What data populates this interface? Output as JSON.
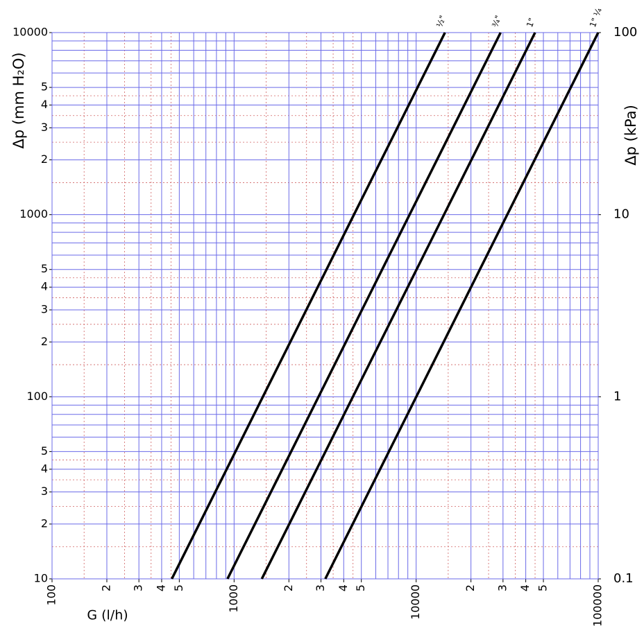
{
  "chart_data": {
    "type": "line",
    "log_x": true,
    "log_y": true,
    "xlabel": "G (l/h)",
    "ylabel": "Δp (mm H₂O)",
    "y2label": "Δp (kPa)",
    "xlim": [
      100,
      100000
    ],
    "ylim": [
      10,
      10000
    ],
    "y2lim": [
      0.1,
      100
    ],
    "xticks": [
      100,
      {
        "value": 200,
        "label": "2"
      },
      {
        "value": 300,
        "label": "3"
      },
      {
        "value": 400,
        "label": "4"
      },
      {
        "value": 500,
        "label": "5"
      },
      1000,
      {
        "value": 2000,
        "label": "2"
      },
      {
        "value": 3000,
        "label": "3"
      },
      {
        "value": 4000,
        "label": "4"
      },
      {
        "value": 5000,
        "label": "5"
      },
      10000,
      {
        "value": 20000,
        "label": "2"
      },
      {
        "value": 30000,
        "label": "3"
      },
      {
        "value": 40000,
        "label": "4"
      },
      {
        "value": 50000,
        "label": "5"
      },
      100000
    ],
    "yticks": [
      10,
      {
        "value": 20,
        "label": "2"
      },
      {
        "value": 30,
        "label": "3"
      },
      {
        "value": 40,
        "label": "4"
      },
      {
        "value": 50,
        "label": "5"
      },
      100,
      {
        "value": 200,
        "label": "2"
      },
      {
        "value": 300,
        "label": "3"
      },
      {
        "value": 400,
        "label": "4"
      },
      {
        "value": 500,
        "label": "5"
      },
      1000,
      {
        "value": 2000,
        "label": "2"
      },
      {
        "value": 3000,
        "label": "3"
      },
      {
        "value": 4000,
        "label": "4"
      },
      {
        "value": 5000,
        "label": "5"
      },
      10000
    ],
    "y2ticks": [
      0.1,
      1,
      10,
      100
    ],
    "grid": {
      "color": "#6a6ae8",
      "minor_color": "#d06060",
      "x": [
        100,
        200,
        300,
        400,
        500,
        600,
        700,
        800,
        900,
        1000,
        2000,
        3000,
        4000,
        5000,
        6000,
        7000,
        8000,
        9000,
        10000,
        20000,
        30000,
        40000,
        50000,
        60000,
        70000,
        80000,
        90000,
        100000
      ],
      "y": [
        10,
        20,
        30,
        40,
        50,
        60,
        70,
        80,
        90,
        100,
        200,
        300,
        400,
        500,
        600,
        700,
        800,
        900,
        1000,
        2000,
        3000,
        4000,
        5000,
        6000,
        7000,
        8000,
        9000,
        10000
      ],
      "minor_x": [
        150,
        250,
        350,
        450,
        1500,
        2500,
        3500,
        4500,
        15000,
        25000,
        35000,
        45000
      ],
      "minor_y": [
        15,
        25,
        35,
        45,
        150,
        250,
        350,
        450,
        1500,
        2500,
        3500,
        4500
      ]
    },
    "series": [
      {
        "name": "½\"",
        "color": "#000000",
        "x": [
          455,
          14400
        ],
        "values": [
          10,
          10000
        ]
      },
      {
        "name": "¾\"",
        "color": "#000000",
        "x": [
          920,
          29100
        ],
        "values": [
          10,
          10000
        ]
      },
      {
        "name": "1\"",
        "color": "#000000",
        "x": [
          1420,
          45000
        ],
        "values": [
          10,
          10000
        ]
      },
      {
        "name": "1\" ¼",
        "color": "#000000",
        "x": [
          3170,
          100000
        ],
        "values": [
          10,
          10000
        ]
      }
    ]
  }
}
